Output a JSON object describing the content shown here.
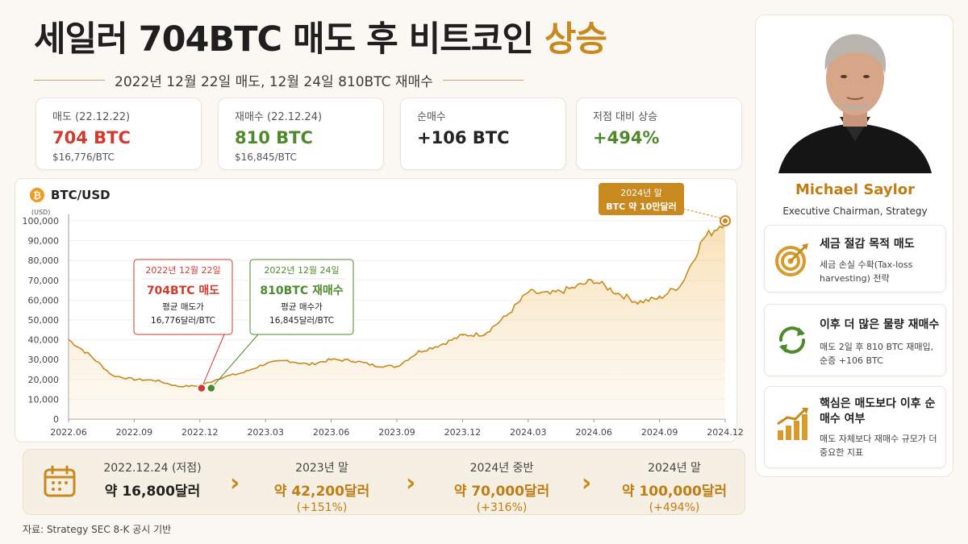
{
  "header": {
    "title_main": "세일러 704BTC 매도 후 비트코인 ",
    "title_accent": "상승",
    "subtitle": "2022년 12월 22일 매도, 12월 24일 810BTC 재매수"
  },
  "stats": [
    {
      "label": "매도 (22.12.22)",
      "value": "704 BTC",
      "sub": "$16,776/BTC",
      "color": "red"
    },
    {
      "label": "재매수 (22.12.24)",
      "value": "810 BTC",
      "sub": "$16,845/BTC",
      "color": "green"
    },
    {
      "label": "순매수",
      "value": "+106 BTC",
      "sub": "",
      "color": "dark"
    },
    {
      "label": "저점 대비 상승",
      "value": "+494%",
      "sub": "",
      "color": "green"
    }
  ],
  "chart_data": {
    "type": "line",
    "title": "BTC/USD",
    "unit_label": "(USD)",
    "ylim": [
      0,
      100000
    ],
    "y_ticks": [
      0,
      10000,
      20000,
      30000,
      40000,
      50000,
      60000,
      70000,
      80000,
      90000,
      100000
    ],
    "y_tick_labels": [
      "0",
      "10,000",
      "20,000",
      "30,000",
      "40,000",
      "50,000",
      "60,000",
      "70,000",
      "80,000",
      "90,000",
      "100,000"
    ],
    "x_tick_labels": [
      "2022.06",
      "2022.09",
      "2022.12",
      "2023.03",
      "2023.06",
      "2023.09",
      "2023.12",
      "2024.03",
      "2024.06",
      "2024.09",
      "2024.12"
    ],
    "x_months": [
      "2022-06",
      "2022-07",
      "2022-08",
      "2022-09",
      "2022-10",
      "2022-11",
      "2022-12",
      "2023-01",
      "2023-02",
      "2023-03",
      "2023-04",
      "2023-05",
      "2023-06",
      "2023-07",
      "2023-08",
      "2023-09",
      "2023-10",
      "2023-11",
      "2023-12",
      "2024-01",
      "2024-02",
      "2024-03",
      "2024-04",
      "2024-05",
      "2024-06",
      "2024-07",
      "2024-08",
      "2024-09",
      "2024-10",
      "2024-11",
      "2024-12"
    ],
    "values": [
      40000,
      32000,
      22000,
      20000,
      19500,
      16500,
      16800,
      21000,
      23500,
      28000,
      29500,
      27500,
      30000,
      29500,
      27000,
      26500,
      34000,
      37500,
      42200,
      43000,
      52000,
      64000,
      63000,
      66000,
      70000,
      64000,
      59000,
      61000,
      68000,
      91000,
      100000
    ],
    "grid": true,
    "line_color": "#c8891e",
    "annotations": [
      {
        "date": "2022년 12월 22일",
        "title": "704BTC 매도",
        "line1": "평균 매도가",
        "line2": "16,776달러/BTC",
        "color": "#d23a2e"
      },
      {
        "date": "2022년 12월 24일",
        "title": "810BTC 재매수",
        "line1": "평균 매수가",
        "line2": "16,845달러/BTC",
        "color": "#4e8a2c"
      },
      {
        "line1": "2024년 말",
        "line2": "BTC 약 10만달러",
        "color": "#c8891e"
      }
    ]
  },
  "timeline": [
    {
      "date": "2022.12.24 (저점)",
      "price": "약 16,800달러",
      "pct": ""
    },
    {
      "date": "2023년 말",
      "price": "약 42,200달러",
      "pct": "(+151%)"
    },
    {
      "date": "2024년 중반",
      "price": "약 70,000달러",
      "pct": "(+316%)"
    },
    {
      "date": "2024년 말",
      "price": "약 100,000달러",
      "pct": "(+494%)"
    }
  ],
  "source": "자료: Strategy SEC 8-K 공시 기반",
  "profile": {
    "name": "Michael Saylor",
    "role": "Executive Chairman, Strategy"
  },
  "insights": [
    {
      "title": "세금 절감 목적 매도",
      "body": "세금 손실 수확(Tax-loss harvesting) 전략",
      "icon": "target-icon"
    },
    {
      "title": "이후 더 많은 물량 재매수",
      "body": "매도 2일 후 810 BTC 재매입, 순증 +106 BTC",
      "icon": "recycle-icon"
    },
    {
      "title": "핵심은 매도보다 이후 순매수 여부",
      "body": "매도 자체보다 재매수 규모가 더 중요한 지표",
      "icon": "growth-chart-icon"
    }
  ]
}
